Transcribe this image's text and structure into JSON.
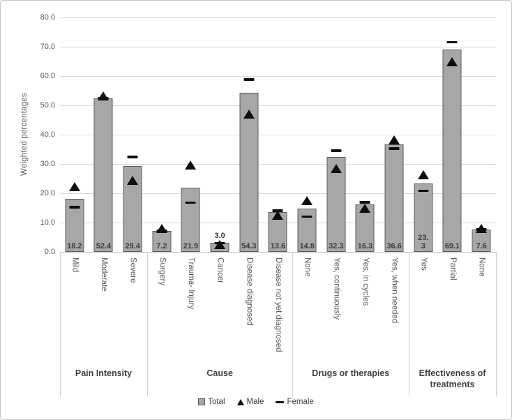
{
  "y_axis": {
    "title": "Weighted percentages",
    "ticks": [
      "80.0",
      "70.0",
      "60.0",
      "50.0",
      "40.0",
      "30.0",
      "20.0",
      "10.0",
      "0.0"
    ]
  },
  "legend": {
    "items": [
      {
        "label": "Total",
        "icon": "square-icon"
      },
      {
        "label": "Male",
        "icon": "triangle-icon"
      },
      {
        "label": "Female",
        "icon": "dash-icon"
      }
    ]
  },
  "colors": {
    "bar_fill": "#a7a7a7",
    "bar_border": "#5b5b5b",
    "marker": "#0d0d0d",
    "gridline": "#d9d9d9",
    "axis_text": "#595959",
    "label_text": "#3b3b3b"
  },
  "chart_data": {
    "type": "bar",
    "title": "",
    "xlabel": "",
    "ylabel": "Weighted percentages",
    "ylim": [
      0,
      80
    ],
    "y_tick_step": 10,
    "grid": true,
    "legend_position": "bottom",
    "series_names": [
      "Total",
      "Male",
      "Female"
    ],
    "groups": [
      {
        "label": "Pain Intensity",
        "items": [
          {
            "category": "Mild",
            "total": 18.2,
            "male": 22.3,
            "female": 15.3,
            "total_label": "18.2",
            "label_position": "inside"
          },
          {
            "category": "Moderate",
            "total": 52.4,
            "male": 53.2,
            "female": 52.4,
            "total_label": "52.4",
            "label_position": "inside"
          },
          {
            "category": "Severe",
            "total": 29.4,
            "male": 24.5,
            "female": 32.4,
            "total_label": "29.4",
            "label_position": "inside"
          }
        ]
      },
      {
        "label": "Cause",
        "items": [
          {
            "category": "Surgery",
            "total": 7.2,
            "male": 8.0,
            "female": 7.2,
            "total_label": "7.2",
            "label_position": "inside"
          },
          {
            "category": "Trauma- Injury",
            "total": 21.9,
            "male": 29.6,
            "female": 16.8,
            "total_label": "21.9",
            "label_position": "inside"
          },
          {
            "category": "Cancer",
            "total": 3.0,
            "male": 2.5,
            "female": 3.0,
            "total_label": "3.0",
            "label_position": "above"
          },
          {
            "category": "Disease diagnosed",
            "total": 54.3,
            "male": 47.0,
            "female": 58.8,
            "total_label": "54.3",
            "label_position": "inside"
          },
          {
            "category": "Disease not yet diagnosed",
            "total": 13.6,
            "male": 12.4,
            "female": 14.1,
            "total_label": "13.6",
            "label_position": "inside"
          }
        ]
      },
      {
        "label": "Drugs or therapies",
        "items": [
          {
            "category": "None",
            "total": 14.8,
            "male": 17.5,
            "female": 12.0,
            "total_label": "14.8",
            "label_position": "inside"
          },
          {
            "category": "Yes, continuously",
            "total": 32.3,
            "male": 28.4,
            "female": 34.5,
            "total_label": "32.3",
            "label_position": "inside"
          },
          {
            "category": "Yes, in cycles",
            "total": 16.3,
            "male": 14.9,
            "female": 16.9,
            "total_label": "16.3",
            "label_position": "inside"
          },
          {
            "category": "Yes, when needed",
            "total": 36.6,
            "male": 38.2,
            "female": 35.2,
            "total_label": "36.6",
            "label_position": "inside"
          }
        ]
      },
      {
        "label": "Effectiveness of treatments",
        "items": [
          {
            "category": "Yes",
            "total": 23.3,
            "male": 26.3,
            "female": 20.8,
            "total_label": "23.\n3",
            "label_position": "inside"
          },
          {
            "category": "Partial",
            "total": 69.1,
            "male": 65.0,
            "female": 71.5,
            "total_label": "69.1",
            "label_position": "inside"
          },
          {
            "category": "None",
            "total": 7.6,
            "male": 7.9,
            "female": 7.6,
            "total_label": "7.6",
            "label_position": "inside"
          }
        ]
      }
    ]
  }
}
